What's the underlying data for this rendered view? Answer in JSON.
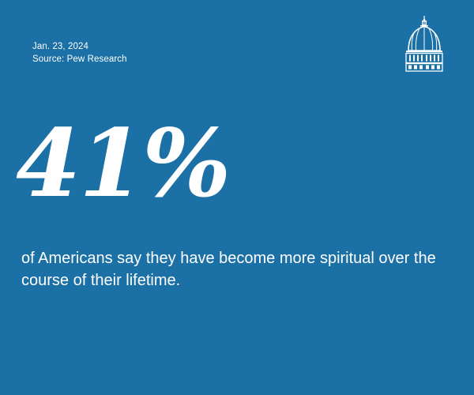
{
  "header": {
    "date": "Jan. 23, 2024",
    "source": "Source: Pew Research"
  },
  "logo": {
    "icon": "capitol-dome-icon"
  },
  "stat": {
    "value": "41%",
    "description": "of Americans say they have become more spiritual over the course of their lifetime."
  },
  "colors": {
    "background": "#1b70a6",
    "text": "#ffffff"
  }
}
